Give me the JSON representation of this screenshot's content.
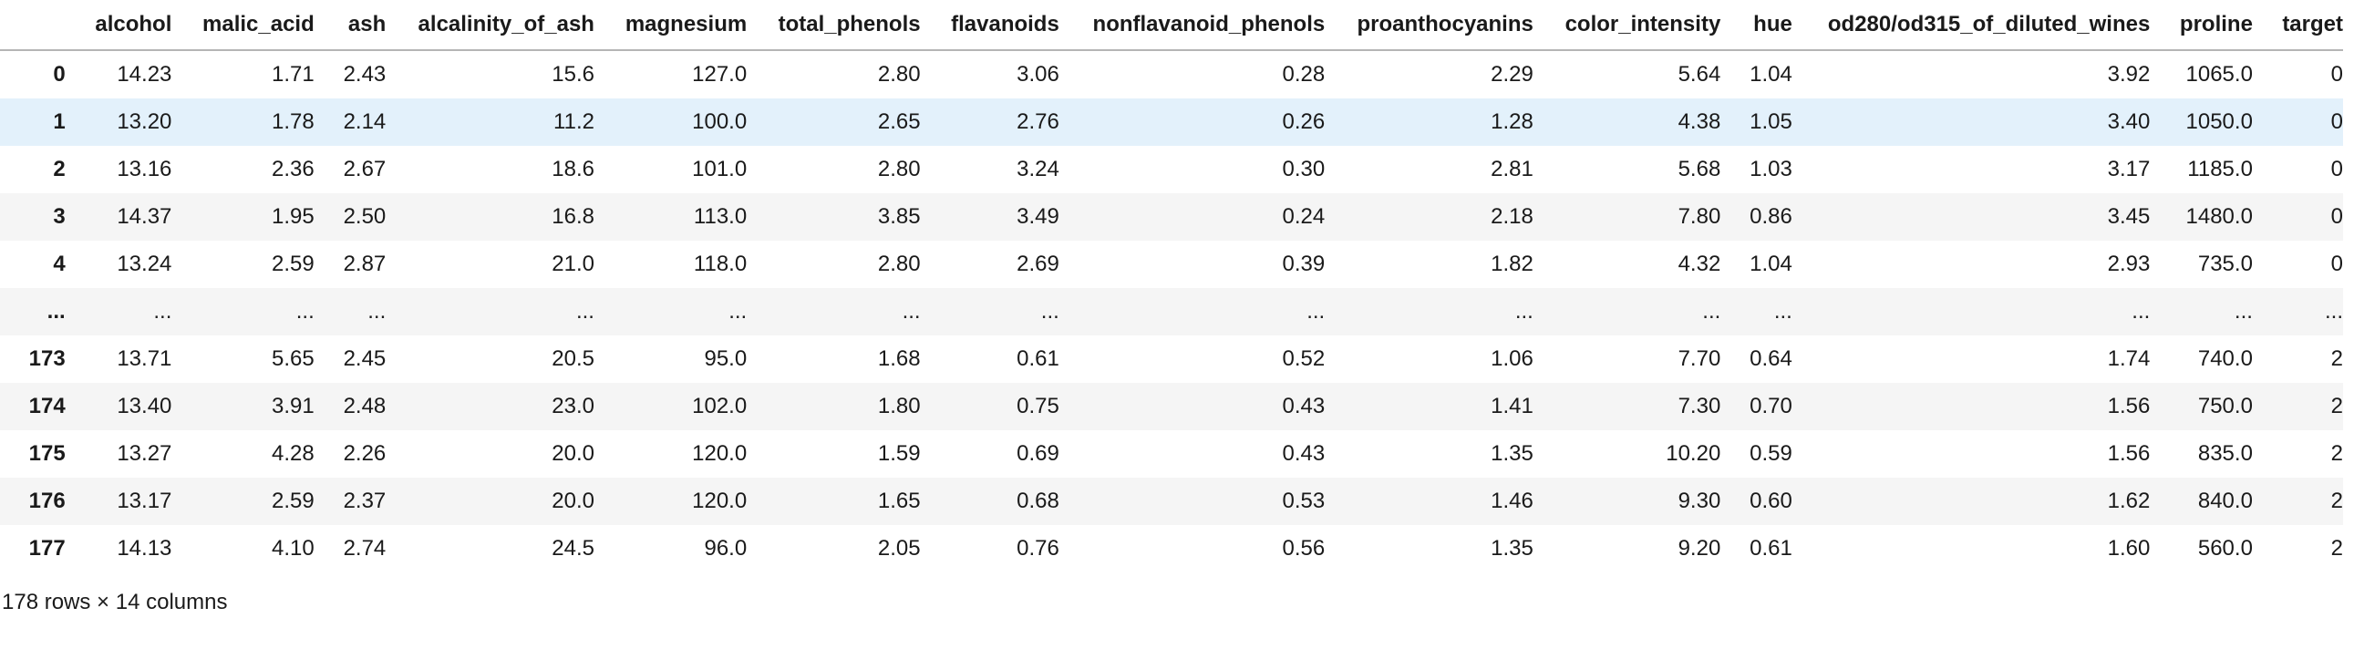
{
  "table": {
    "columns": [
      "alcohol",
      "malic_acid",
      "ash",
      "alcalinity_of_ash",
      "magnesium",
      "total_phenols",
      "flavanoids",
      "nonflavanoid_phenols",
      "proanthocyanins",
      "color_intensity",
      "hue",
      "od280/od315_of_diluted_wines",
      "proline",
      "target"
    ],
    "rows": [
      {
        "index": "0",
        "highlight": false,
        "values": [
          "14.23",
          "1.71",
          "2.43",
          "15.6",
          "127.0",
          "2.80",
          "3.06",
          "0.28",
          "2.29",
          "5.64",
          "1.04",
          "3.92",
          "1065.0",
          "0"
        ]
      },
      {
        "index": "1",
        "highlight": true,
        "values": [
          "13.20",
          "1.78",
          "2.14",
          "11.2",
          "100.0",
          "2.65",
          "2.76",
          "0.26",
          "1.28",
          "4.38",
          "1.05",
          "3.40",
          "1050.0",
          "0"
        ]
      },
      {
        "index": "2",
        "highlight": false,
        "values": [
          "13.16",
          "2.36",
          "2.67",
          "18.6",
          "101.0",
          "2.80",
          "3.24",
          "0.30",
          "2.81",
          "5.68",
          "1.03",
          "3.17",
          "1185.0",
          "0"
        ]
      },
      {
        "index": "3",
        "highlight": false,
        "values": [
          "14.37",
          "1.95",
          "2.50",
          "16.8",
          "113.0",
          "3.85",
          "3.49",
          "0.24",
          "2.18",
          "7.80",
          "0.86",
          "3.45",
          "1480.0",
          "0"
        ]
      },
      {
        "index": "4",
        "highlight": false,
        "values": [
          "13.24",
          "2.59",
          "2.87",
          "21.0",
          "118.0",
          "2.80",
          "2.69",
          "0.39",
          "1.82",
          "4.32",
          "1.04",
          "2.93",
          "735.0",
          "0"
        ]
      },
      {
        "index": "...",
        "highlight": false,
        "values": [
          "...",
          "...",
          "...",
          "...",
          "...",
          "...",
          "...",
          "...",
          "...",
          "...",
          "...",
          "...",
          "...",
          "..."
        ]
      },
      {
        "index": "173",
        "highlight": false,
        "values": [
          "13.71",
          "5.65",
          "2.45",
          "20.5",
          "95.0",
          "1.68",
          "0.61",
          "0.52",
          "1.06",
          "7.70",
          "0.64",
          "1.74",
          "740.0",
          "2"
        ]
      },
      {
        "index": "174",
        "highlight": false,
        "values": [
          "13.40",
          "3.91",
          "2.48",
          "23.0",
          "102.0",
          "1.80",
          "0.75",
          "0.43",
          "1.41",
          "7.30",
          "0.70",
          "1.56",
          "750.0",
          "2"
        ]
      },
      {
        "index": "175",
        "highlight": false,
        "values": [
          "13.27",
          "4.28",
          "2.26",
          "20.0",
          "120.0",
          "1.59",
          "0.69",
          "0.43",
          "1.35",
          "10.20",
          "0.59",
          "1.56",
          "835.0",
          "2"
        ]
      },
      {
        "index": "176",
        "highlight": false,
        "values": [
          "13.17",
          "2.59",
          "2.37",
          "20.0",
          "120.0",
          "1.65",
          "0.68",
          "0.53",
          "1.46",
          "9.30",
          "0.60",
          "1.62",
          "840.0",
          "2"
        ]
      },
      {
        "index": "177",
        "highlight": false,
        "values": [
          "14.13",
          "4.10",
          "2.74",
          "24.5",
          "96.0",
          "2.05",
          "0.76",
          "0.56",
          "1.35",
          "9.20",
          "0.61",
          "1.60",
          "560.0",
          "2"
        ]
      }
    ],
    "footer": "178 rows × 14 columns"
  },
  "colors": {
    "row_hover_highlight": "#e3f1fb",
    "row_stripe": "#f5f5f5",
    "header_border": "#b5b5b5",
    "text": "#1a1a1a"
  }
}
